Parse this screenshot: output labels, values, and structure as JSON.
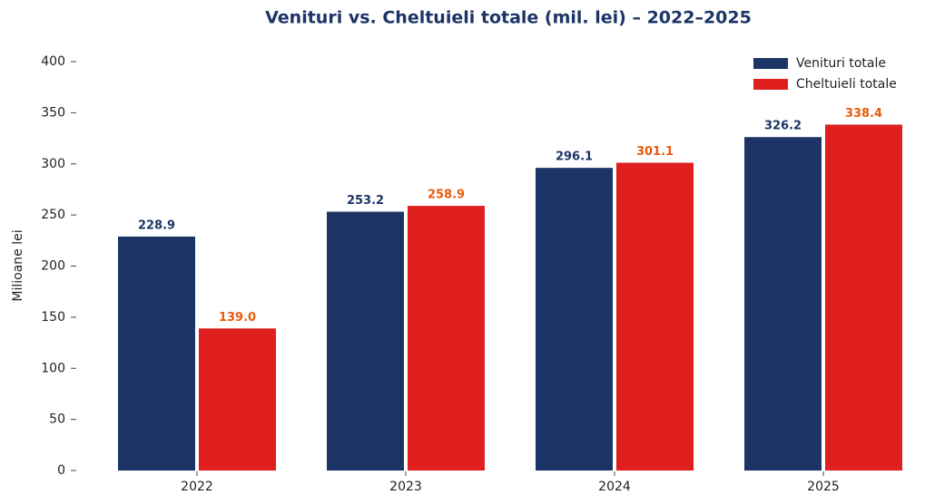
{
  "chart_data": {
    "type": "bar",
    "title": "Venituri vs. Cheltuieli totale (mil. lei) – 2022–2025",
    "y_label": "Milioane lei",
    "categories": [
      "2022",
      "2023",
      "2024",
      "2025"
    ],
    "series": [
      {
        "name": "Venituri totale",
        "color": "#1c3566",
        "label_color": "#1c3566",
        "values": [
          228.9,
          253.2,
          296.1,
          326.2
        ]
      },
      {
        "name": "Cheltuieli totale",
        "color": "#e01f1f",
        "label_color": "#e85a0c",
        "values": [
          139.0,
          258.9,
          301.1,
          338.4
        ],
        "value_labels": [
          "139.0",
          "258.9",
          "301.1",
          "338.4"
        ]
      }
    ],
    "ylim": [
      0,
      400
    ],
    "yticks": [
      0,
      50,
      100,
      150,
      200,
      250,
      300,
      350,
      400
    ],
    "grid": false,
    "legend": "upper right"
  }
}
